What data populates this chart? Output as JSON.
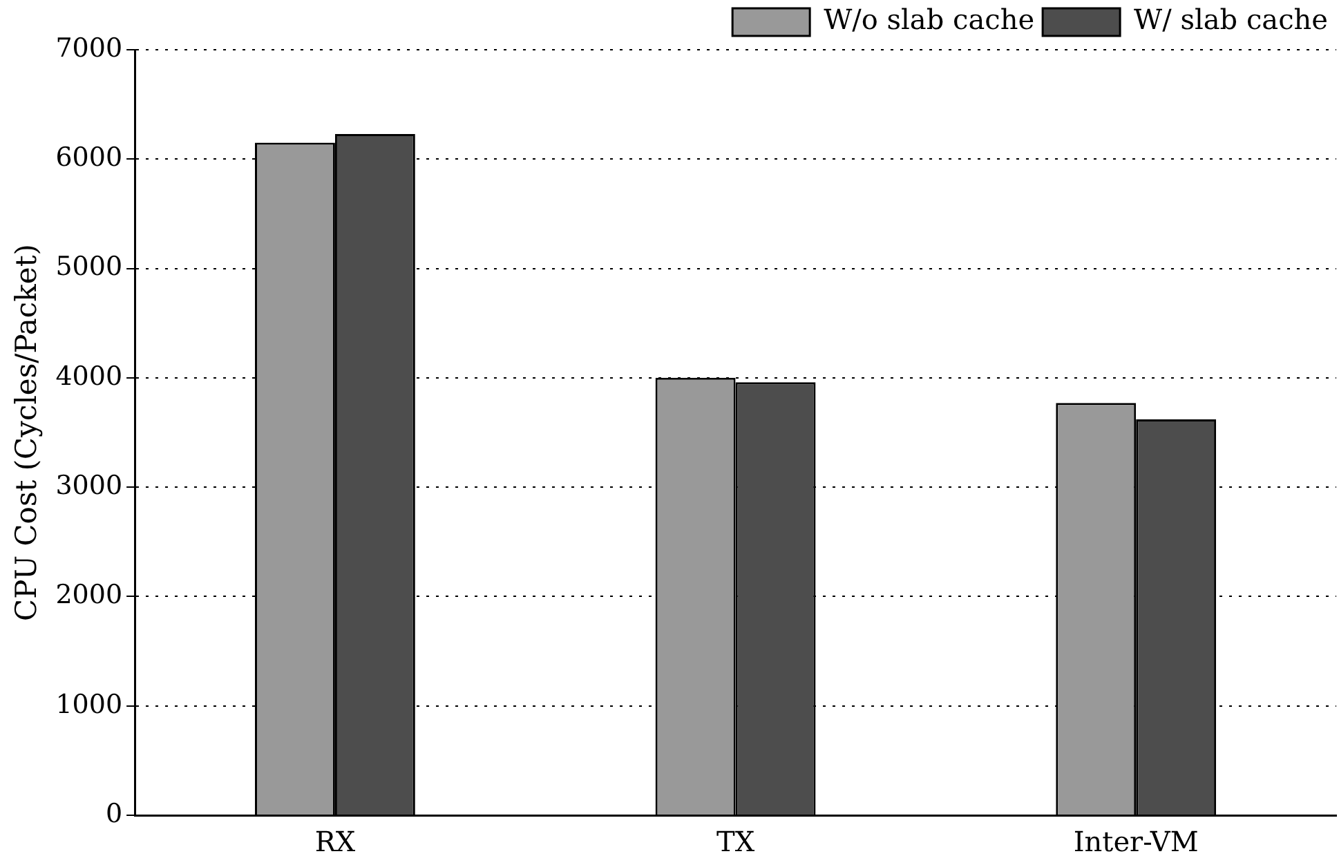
{
  "chart_data": {
    "type": "bar",
    "ylabel": "CPU Cost (Cycles/Packet)",
    "categories": [
      "RX",
      "TX",
      "Inter-VM"
    ],
    "series": [
      {
        "name": "W/o slab cache",
        "color": "#999999",
        "values": [
          6150,
          4000,
          3770
        ]
      },
      {
        "name": "W/ slab cache",
        "color": "#4d4d4d",
        "values": [
          6230,
          3960,
          3620
        ]
      }
    ],
    "ylim": [
      0,
      7000
    ],
    "yticks": [
      0,
      1000,
      2000,
      3000,
      4000,
      5000,
      6000,
      7000
    ],
    "grid": "y",
    "legend": "top right"
  }
}
